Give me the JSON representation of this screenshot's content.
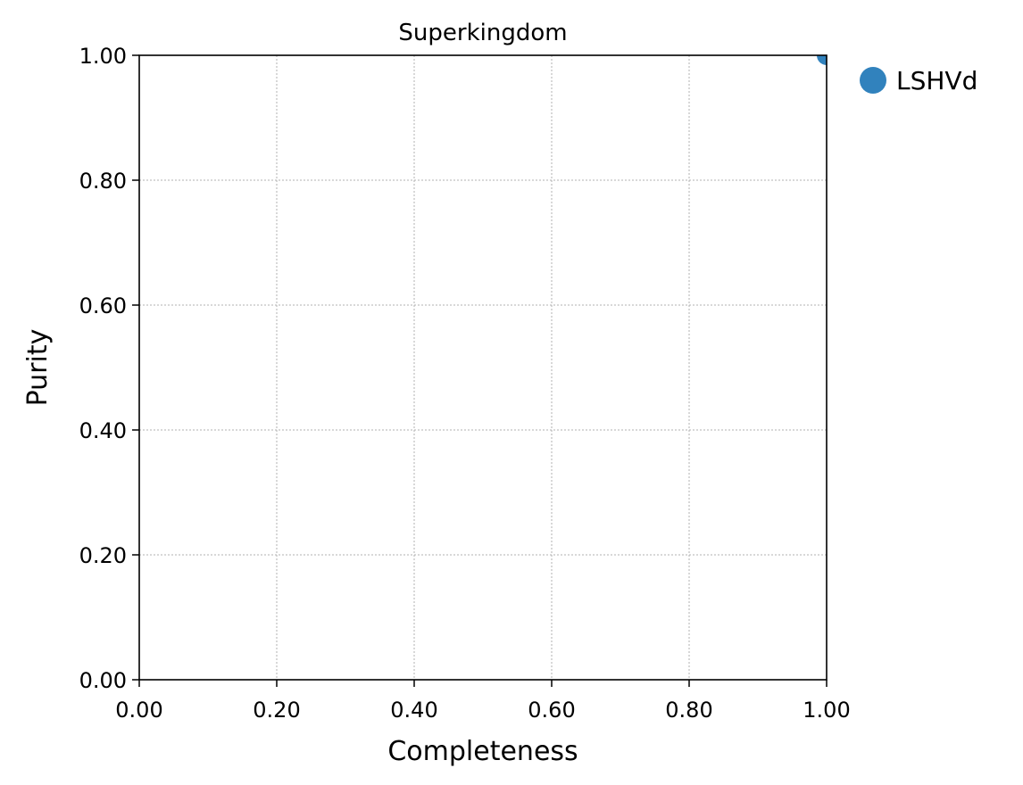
{
  "chart_data": {
    "type": "scatter",
    "title": "Superkingdom",
    "xlabel": "Completeness",
    "ylabel": "Purity",
    "xlim": [
      0,
      1
    ],
    "ylim": [
      0,
      1
    ],
    "xticks": [
      "0.00",
      "0.20",
      "0.40",
      "0.60",
      "0.80",
      "1.00"
    ],
    "yticks": [
      "0.00",
      "0.20",
      "0.40",
      "0.60",
      "0.80",
      "1.00"
    ],
    "grid": true,
    "legend_position": "outside-top-right",
    "series": [
      {
        "name": "LSHVd",
        "color": "#3182bd",
        "points": [
          {
            "x": 1.0,
            "y": 1.0
          }
        ]
      }
    ]
  }
}
